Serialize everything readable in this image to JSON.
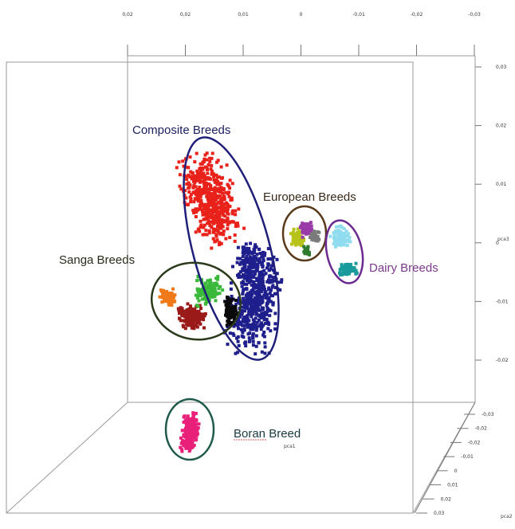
{
  "chart_data": {
    "type": "scatter",
    "projection": "3d",
    "title": "",
    "axes": {
      "top_ticks": [
        "0,02",
        "0,02",
        "0,01",
        "0",
        "-0,01",
        "-0,02",
        "-0,03"
      ],
      "right_ticks": [
        "0,03",
        "0,02",
        "0,01",
        "0",
        "-0,01",
        "-0,02"
      ],
      "right_bottom_ticks": [
        "-0,03",
        "-0,02",
        "-0,02",
        "-0,01",
        "0",
        "0,01",
        "0,02",
        "0,03"
      ],
      "right_axis_label": "pca3",
      "depth_axis_label": "pca2",
      "floor_axis_label": "pca1"
    },
    "groups": [
      {
        "name": "Composite Breeds",
        "label_color": "#1b1f5c",
        "ellipse_color": "#1f1f7a"
      },
      {
        "name": "European Breeds",
        "label_color": "#3a2a1a",
        "ellipse_color": "#5a3a1a"
      },
      {
        "name": "Dairy Breeds",
        "label_color": "#7a3a8a",
        "ellipse_color": "#6a2a90"
      },
      {
        "name": "Sanga Breeds",
        "label_color": "#2a2a1a",
        "ellipse_color": "#2a3a1a"
      },
      {
        "name": "Boran Breed",
        "label_color": "#1a3a40",
        "ellipse_color": "#1f5a4a"
      }
    ],
    "series": [
      {
        "group": "Composite Breeds",
        "color": "#e8221a",
        "points": []
      },
      {
        "group": "Composite Breeds",
        "color": "#1e1e8c",
        "points": []
      },
      {
        "group": "European Breeds",
        "color": "#b7c21a",
        "points": []
      },
      {
        "group": "European Breeds",
        "color": "#9a3aa8",
        "points": []
      },
      {
        "group": "European Breeds",
        "color": "#7a7a7a",
        "points": []
      },
      {
        "group": "European Breeds",
        "color": "#2e7a2e",
        "points": []
      },
      {
        "group": "Dairy Breeds",
        "color": "#8fdcef",
        "points": []
      },
      {
        "group": "Dairy Breeds",
        "color": "#1a9a9a",
        "points": []
      },
      {
        "group": "Sanga Breeds",
        "color": "#f07a1a",
        "points": []
      },
      {
        "group": "Sanga Breeds",
        "color": "#9a1a1a",
        "points": []
      },
      {
        "group": "Sanga Breeds",
        "color": "#3ab83a",
        "points": []
      },
      {
        "group": "Sanga Breeds",
        "color": "#0a0a0a",
        "points": []
      },
      {
        "group": "Boran Breed",
        "color": "#e8207a",
        "points": []
      }
    ]
  }
}
